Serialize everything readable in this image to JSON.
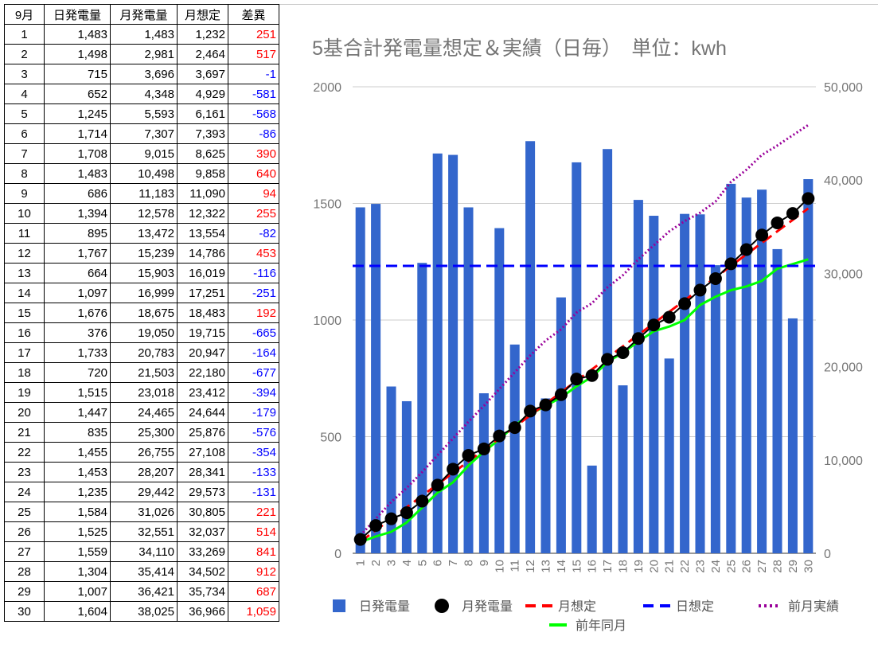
{
  "table": {
    "headers": [
      "9月",
      "日発電量",
      "月発電量",
      "月想定",
      "差異"
    ],
    "rows": [
      [
        "1",
        "1,483",
        "1,483",
        "1,232",
        "251"
      ],
      [
        "2",
        "1,498",
        "2,981",
        "2,464",
        "517"
      ],
      [
        "3",
        "715",
        "3,696",
        "3,697",
        "-1"
      ],
      [
        "4",
        "652",
        "4,348",
        "4,929",
        "-581"
      ],
      [
        "5",
        "1,245",
        "5,593",
        "6,161",
        "-568"
      ],
      [
        "6",
        "1,714",
        "7,307",
        "7,393",
        "-86"
      ],
      [
        "7",
        "1,708",
        "9,015",
        "8,625",
        "390"
      ],
      [
        "8",
        "1,483",
        "10,498",
        "9,858",
        "640"
      ],
      [
        "9",
        "686",
        "11,183",
        "11,090",
        "94"
      ],
      [
        "10",
        "1,394",
        "12,578",
        "12,322",
        "255"
      ],
      [
        "11",
        "895",
        "13,472",
        "13,554",
        "-82"
      ],
      [
        "12",
        "1,767",
        "15,239",
        "14,786",
        "453"
      ],
      [
        "13",
        "664",
        "15,903",
        "16,019",
        "-116"
      ],
      [
        "14",
        "1,097",
        "16,999",
        "17,251",
        "-251"
      ],
      [
        "15",
        "1,676",
        "18,675",
        "18,483",
        "192"
      ],
      [
        "16",
        "376",
        "19,050",
        "19,715",
        "-665"
      ],
      [
        "17",
        "1,733",
        "20,783",
        "20,947",
        "-164"
      ],
      [
        "18",
        "720",
        "21,503",
        "22,180",
        "-677"
      ],
      [
        "19",
        "1,515",
        "23,018",
        "23,412",
        "-394"
      ],
      [
        "20",
        "1,447",
        "24,465",
        "24,644",
        "-179"
      ],
      [
        "21",
        "835",
        "25,300",
        "25,876",
        "-576"
      ],
      [
        "22",
        "1,455",
        "26,755",
        "27,108",
        "-354"
      ],
      [
        "23",
        "1,453",
        "28,207",
        "28,341",
        "-133"
      ],
      [
        "24",
        "1,235",
        "29,442",
        "29,573",
        "-131"
      ],
      [
        "25",
        "1,584",
        "31,026",
        "30,805",
        "221"
      ],
      [
        "26",
        "1,525",
        "32,551",
        "32,037",
        "514"
      ],
      [
        "27",
        "1,559",
        "34,110",
        "33,269",
        "841"
      ],
      [
        "28",
        "1,304",
        "35,414",
        "34,502",
        "912"
      ],
      [
        "29",
        "1,007",
        "36,421",
        "35,734",
        "687"
      ],
      [
        "30",
        "1,604",
        "38,025",
        "36,966",
        "1,059"
      ]
    ]
  },
  "chart_data": {
    "type": "bar",
    "title": "5基合計発電量想定＆実績（日毎）　単位：kwh",
    "categories": [
      "1",
      "2",
      "3",
      "4",
      "5",
      "6",
      "7",
      "8",
      "9",
      "10",
      "11",
      "12",
      "13",
      "14",
      "15",
      "16",
      "17",
      "18",
      "19",
      "20",
      "21",
      "22",
      "23",
      "24",
      "25",
      "26",
      "27",
      "28",
      "29",
      "30"
    ],
    "y_left": {
      "min": 0,
      "max": 2000,
      "ticks": [
        0,
        500,
        1000,
        1500,
        2000
      ],
      "tick_labels": [
        "0",
        "500",
        "1000",
        "1500",
        "2000"
      ]
    },
    "y_right": {
      "min": 0,
      "max": 50000,
      "ticks": [
        0,
        10000,
        20000,
        30000,
        40000,
        50000
      ],
      "tick_labels": [
        "0",
        "10,000",
        "20,000",
        "30,000",
        "40,000",
        "50,000"
      ]
    },
    "grid": true,
    "legend_position": "bottom",
    "series": [
      {
        "name": "日発電量",
        "type": "bar",
        "axis": "left",
        "color": "#3366cc",
        "values": [
          1483,
          1498,
          715,
          652,
          1245,
          1714,
          1708,
          1483,
          686,
          1394,
          895,
          1767,
          664,
          1097,
          1676,
          376,
          1733,
          720,
          1515,
          1447,
          835,
          1455,
          1453,
          1235,
          1584,
          1525,
          1559,
          1304,
          1007,
          1604
        ]
      },
      {
        "name": "月発電量",
        "type": "line-markers",
        "axis": "right",
        "color": "#000000",
        "values": [
          1483,
          2981,
          3696,
          4348,
          5593,
          7307,
          9015,
          10498,
          11183,
          12578,
          13472,
          15239,
          15903,
          16999,
          18675,
          19050,
          20783,
          21503,
          23018,
          24465,
          25300,
          26755,
          28207,
          29442,
          31026,
          32551,
          34110,
          35414,
          36421,
          38025
        ]
      },
      {
        "name": "月想定",
        "type": "dashed-line",
        "axis": "right",
        "color": "#ff0000",
        "values": [
          1232,
          2464,
          3697,
          4929,
          6161,
          7393,
          8625,
          9858,
          11090,
          12322,
          13554,
          14786,
          16019,
          17251,
          18483,
          19715,
          20947,
          22180,
          23412,
          24644,
          25876,
          27108,
          28341,
          29573,
          30805,
          32037,
          33269,
          34502,
          35734,
          36966
        ]
      },
      {
        "name": "日想定",
        "type": "dashed-line",
        "axis": "left",
        "color": "#0000ff",
        "values": [
          1232,
          1232,
          1232,
          1232,
          1232,
          1232,
          1232,
          1232,
          1232,
          1232,
          1232,
          1232,
          1232,
          1232,
          1232,
          1232,
          1232,
          1232,
          1232,
          1232,
          1232,
          1232,
          1232,
          1232,
          1232,
          1232,
          1232,
          1232,
          1232,
          1232
        ]
      },
      {
        "name": "前月実績",
        "type": "dotted-line",
        "axis": "right",
        "color": "#990099",
        "values": [
          1900,
          3700,
          5500,
          7000,
          8700,
          10500,
          12300,
          14100,
          15800,
          17600,
          19400,
          21200,
          22800,
          24000,
          25800,
          26800,
          28500,
          29800,
          31500,
          33000,
          34500,
          35600,
          36500,
          37700,
          39800,
          41100,
          42700,
          43700,
          44800,
          45900
        ]
      },
      {
        "name": "前年同月",
        "type": "line",
        "axis": "right",
        "color": "#00ff00",
        "values": [
          1200,
          1800,
          2300,
          3300,
          4900,
          6500,
          7600,
          9400,
          10900,
          12200,
          13700,
          14900,
          15800,
          16700,
          17900,
          18900,
          20500,
          21500,
          22700,
          23800,
          24300,
          25000,
          26600,
          27500,
          28200,
          28600,
          29200,
          30500,
          31000,
          31500
        ]
      }
    ]
  }
}
